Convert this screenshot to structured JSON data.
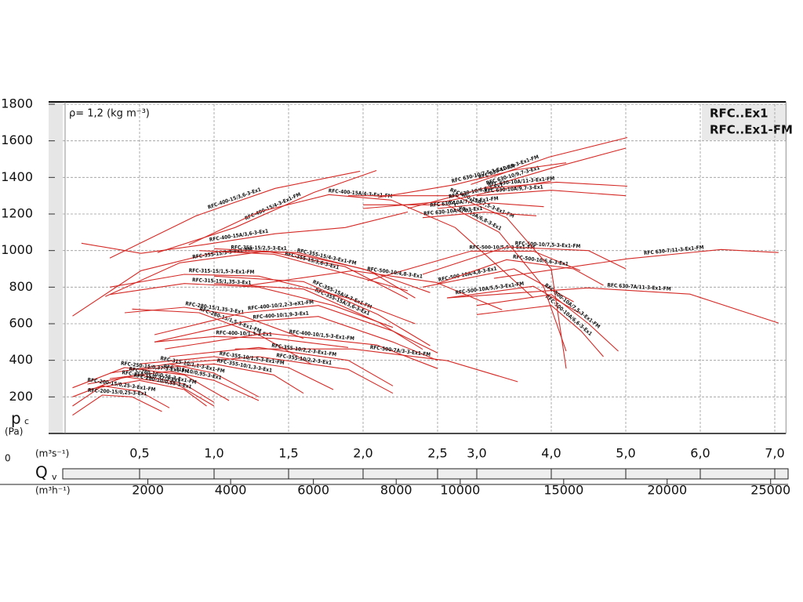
{
  "chart_data": {
    "type": "line",
    "info_label": "ρ= 1,2 (kg m⁻³)",
    "title_lines": [
      "RFC..Ex1",
      "RFC..Ex1-FM"
    ],
    "ylabel": "p",
    "ylabel_sub": "c",
    "yunit": "(Pa)",
    "xlabel": "Q",
    "xlabel_sub": "v",
    "xunit": "(m³s⁻¹)",
    "x2unit": "(m³h⁻¹)",
    "origin_label": 0,
    "color": "#d42a26",
    "grid": true,
    "xlim": [
      0,
      7.15
    ],
    "xticks": [
      {
        "value": 0.5,
        "label": "0,5"
      },
      {
        "value": 1.0,
        "label": "1,0"
      },
      {
        "value": 1.5,
        "label": "1,5"
      },
      {
        "value": 2.0,
        "label": "2,0"
      },
      {
        "value": 2.5,
        "label": "2,5"
      },
      {
        "value": 3.0,
        "label": "3,0"
      },
      {
        "value": 4.0,
        "label": "4,0"
      },
      {
        "value": 5.0,
        "label": "5,0"
      },
      {
        "value": 6.0,
        "label": "6,0"
      },
      {
        "value": 7.0,
        "label": "7,0"
      }
    ],
    "x2ticks": [
      2000,
      4000,
      6000,
      8000,
      10000,
      15000,
      20000,
      25000
    ],
    "ylim": [
      0,
      1800
    ],
    "yticks": [
      200,
      400,
      600,
      800,
      1000,
      1200,
      1400,
      1600,
      1800
    ],
    "series": [
      {
        "name": "RFC-400-15/3,6-3-Ex1",
        "x": [
          0.3,
          0.88,
          1.41,
          1.98
        ],
        "values": [
          959,
          1190,
          1340,
          1434
        ]
      },
      {
        "name": "RFC-400-15/4-3-Ex1-FM",
        "x": [
          0.62,
          1.14,
          1.67,
          2.09
        ],
        "values": [
          989,
          1126,
          1318,
          1438
        ]
      },
      {
        "name": "RFC-400-15A/4-3-Ex1-FM",
        "x": [
          0.83,
          1.3,
          1.77,
          2.19,
          2.71,
          3.76
        ],
        "values": [
          1032,
          1211,
          1306,
          1276,
          1126,
          741
        ]
      },
      {
        "name": "RFC-400-15A/3,6-3-Ex1",
        "x": [
          0.11,
          0.51,
          0.93,
          1.41,
          1.88,
          2.3
        ],
        "values": [
          1040,
          985,
          1032,
          1092,
          1126,
          1211
        ]
      },
      {
        "name": "RFC-355-15/2,5-3-Ex1",
        "x": [
          0.05,
          0.51,
          1.04,
          1.56,
          2.04,
          2.35
        ],
        "values": [
          642,
          890,
          997,
          989,
          890,
          741
        ]
      },
      {
        "name": "RFC-355-15/3-3-Ex1-FM",
        "x": [
          0.27,
          0.77,
          1.35,
          1.88,
          2.3
        ],
        "values": [
          749,
          933,
          997,
          912,
          736
        ]
      },
      {
        "name": "RFC-355-15/3,6-3-Ex1",
        "x": [
          0.9,
          1.4,
          1.9,
          2.3
        ],
        "values": [
          1000,
          980,
          870,
          780
        ]
      },
      {
        "name": "RFC-355-15/4-3-Ex1-FM",
        "x": [
          1.0,
          1.5,
          2.0,
          2.45
        ],
        "values": [
          1010,
          990,
          900,
          770
        ]
      },
      {
        "name": "RFC-355-15A/4-3-Ex1-FM",
        "x": [
          1.0,
          1.6,
          2.1,
          2.45
        ],
        "values": [
          860,
          830,
          650,
          480
        ]
      },
      {
        "name": "RFC-355-15A/3,6-3-Ex1",
        "x": [
          1.0,
          1.6,
          2.1,
          2.4
        ],
        "values": [
          820,
          790,
          610,
          460
        ]
      },
      {
        "name": "RFC-315-15/1,35-3-Ex1",
        "x": [
          0.3,
          0.8,
          1.3,
          1.8,
          2.2
        ],
        "values": [
          760,
          820,
          800,
          700,
          580
        ]
      },
      {
        "name": "RFC-315-15/1,5-3-Ex1-FM",
        "x": [
          0.3,
          0.8,
          1.3,
          1.9,
          2.35
        ],
        "values": [
          800,
          870,
          860,
          740,
          600
        ]
      },
      {
        "name": "RFC-280-15/1,35-3-Ex1",
        "x": [
          0.4,
          0.8,
          1.2,
          1.6
        ],
        "values": [
          660,
          690,
          640,
          520
        ]
      },
      {
        "name": "RFC-280-15/1,5-3-Ex1-FM",
        "x": [
          0.45,
          0.9,
          1.3,
          1.65
        ],
        "values": [
          680,
          660,
          540,
          380
        ]
      },
      {
        "name": "RFC-400-10/2,2-3-eX1-FM",
        "x": [
          0.6,
          1.2,
          1.7,
          2.2,
          2.5
        ],
        "values": [
          540,
          660,
          700,
          560,
          440
        ]
      },
      {
        "name": "RFC-400-10/1,9-3-Ex1",
        "x": [
          0.6,
          1.2,
          1.7,
          2.2,
          2.5
        ],
        "values": [
          500,
          610,
          640,
          500,
          400
        ]
      },
      {
        "name": "RFC-400-10/1,3-3-Ex1",
        "x": [
          0.6,
          1.0,
          1.4,
          1.9
        ],
        "values": [
          500,
          530,
          520,
          470
        ]
      },
      {
        "name": "RFC-400-10/1,5-3-Ex1-FM",
        "x": [
          0.67,
          1.35,
          2.09,
          2.5
        ],
        "values": [
          462,
          548,
          484,
          355
        ]
      },
      {
        "name": "RFC-500-10/5,5-3-Ex1-FM",
        "x": [
          2.03,
          2.92,
          3.76,
          4.39
        ],
        "values": [
          835,
          997,
          997,
          890
        ]
      },
      {
        "name": "RFC-500-10/4,8-3-Ex1",
        "x": [
          1.19,
          1.93,
          2.49,
          3.34
        ],
        "values": [
          805,
          890,
          826,
          676
        ]
      },
      {
        "name": "RFC-500-10A/4,8-3-Ex1",
        "x": [
          2.4,
          3.5,
          4.3
        ],
        "values": [
          800,
          900,
          720
        ]
      },
      {
        "name": "RFC-500-10/7,5-3-Ex1-FM",
        "x": [
          2.4,
          3.4,
          4.5,
          5.0
        ],
        "values": [
          870,
          1020,
          1000,
          900
        ]
      },
      {
        "name": "RFC-500-10/6,6-3-Ex1",
        "x": [
          2.5,
          3.4,
          4.3,
          4.7
        ],
        "values": [
          820,
          950,
          900,
          810
        ]
      },
      {
        "name": "RFC-500-10A/5,5-3-Ex1-FM",
        "x": [
          2.6,
          3.76,
          4.39
        ],
        "values": [
          741,
          805,
          655
        ]
      },
      {
        "name": "RFC-500-10A/7,5-3-Ex1-FM",
        "x": [
          3.0,
          4.0,
          4.5,
          4.9
        ],
        "values": [
          700,
          760,
          600,
          450
        ]
      },
      {
        "name": "RFC-500-10A/6,6-3-Ex1",
        "x": [
          3.0,
          4.0,
          4.4,
          4.7
        ],
        "values": [
          650,
          700,
          560,
          420
        ]
      },
      {
        "name": "RFC-400-15A/6,8-3-Ex1",
        "x": [
          2.0,
          2.6,
          3.3,
          3.9,
          4.2
        ],
        "values": [
          1250,
          1250,
          1100,
          800,
          450
        ]
      },
      {
        "name": "RFC-400-15A/7,5-3-Ex1-FM",
        "x": [
          1.9,
          2.7,
          3.4,
          4.0,
          4.2
        ],
        "values": [
          1300,
          1300,
          1180,
          900,
          355
        ]
      },
      {
        "name": "RFC 630-10/11-3-Ex1-FM",
        "x": [
          2.92,
          3.97,
          5.02
        ],
        "values": [
          1361,
          1511,
          1618
        ]
      },
      {
        "name": "RFC 630-10/9,7-3-Ex1",
        "x": [
          2.3,
          3.0,
          4.0,
          5.0
        ],
        "values": [
          1230,
          1330,
          1450,
          1560
        ]
      },
      {
        "name": "RFC 630-10/7,5-3-Ex1-FM",
        "x": [
          2.1,
          2.7,
          3.5,
          4.2
        ],
        "values": [
          1290,
          1360,
          1440,
          1480
        ]
      },
      {
        "name": "RFC 630-10/6,6-3-Ex1",
        "x": [
          2.0,
          2.6,
          3.4,
          4.0
        ],
        "values": [
          1230,
          1270,
          1340,
          1380
        ]
      },
      {
        "name": "RFC 630-10A/11-3-Ex1-FM",
        "x": [
          3.13,
          4.07,
          5.02
        ],
        "values": [
          1340,
          1374,
          1352
        ]
      },
      {
        "name": "RFC 630-10A/9,7-3-Ex1",
        "x": [
          3.0,
          4.0,
          5.0
        ],
        "values": [
          1300,
          1330,
          1300
        ]
      },
      {
        "name": "RFC 630-10A/7,5-3-Ex1-FM",
        "x": [
          2.5,
          3.2,
          3.9
        ],
        "values": [
          1230,
          1260,
          1240
        ]
      },
      {
        "name": "RFC 630-10A/6,6-3-Ex1",
        "x": [
          2.4,
          3.1,
          3.8
        ],
        "values": [
          1180,
          1210,
          1190
        ]
      },
      {
        "name": "RFC 630-7/11-3-Ex1-FM",
        "x": [
          3.23,
          5.02,
          6.28,
          7.05
        ],
        "values": [
          848,
          955,
          1006,
          989
        ]
      },
      {
        "name": "RFC 630-7A/11-3-Ex1-FM",
        "x": [
          2.6,
          4.49,
          5.86,
          7.05
        ],
        "values": [
          741,
          796,
          762,
          604
        ]
      },
      {
        "name": "RFC-500-7A/3-3-Ex1-FM",
        "x": [
          1.14,
          1.93,
          2.6,
          3.55
        ],
        "values": [
          462,
          462,
          398,
          283
        ]
      },
      {
        "name": "RFC-355-10/2,2-3-Ex1-FM",
        "x": [
          0.7,
          1.3,
          1.9,
          2.2
        ],
        "values": [
          420,
          470,
          400,
          260
        ]
      },
      {
        "name": "RFC-355-10/2,2-3-Ex1",
        "x": [
          0.7,
          1.3,
          1.9,
          2.2
        ],
        "values": [
          380,
          420,
          350,
          220
        ]
      },
      {
        "name": "RFC-355-10/1,5-3-Ex1-FM",
        "x": [
          0.5,
          1.0,
          1.5,
          1.8
        ],
        "values": [
          380,
          420,
          360,
          240
        ]
      },
      {
        "name": "RFC-355-10/1,3-3-Ex1",
        "x": [
          0.5,
          1.0,
          1.4,
          1.6
        ],
        "values": [
          350,
          380,
          320,
          220
        ]
      },
      {
        "name": "RFC-315-10/1,1-3-Ex1-FM",
        "x": [
          0.3,
          0.7,
          1.0,
          1.3
        ],
        "values": [
          330,
          380,
          330,
          200
        ]
      },
      {
        "name": "RFC-315-10/0,95-3-Ex1",
        "x": [
          0.3,
          0.7,
          1.0,
          1.3
        ],
        "values": [
          300,
          340,
          290,
          180
        ]
      },
      {
        "name": "RFC-250-15/0,37-3-Ex1-FM",
        "x": [
          0.05,
          0.4,
          0.8,
          1.1
        ],
        "values": [
          250,
          360,
          320,
          180
        ]
      },
      {
        "name": "RFC-250-15/0,37-3-Ex1",
        "x": [
          0.05,
          0.4,
          0.75,
          1.0
        ],
        "values": [
          200,
          310,
          270,
          150
        ]
      },
      {
        "name": "RFC-280-10/0,55-3-Ex1-FM",
        "x": [
          0.15,
          0.5,
          0.8,
          1.0
        ],
        "values": [
          270,
          320,
          270,
          170
        ]
      },
      {
        "name": "RFC-280-10/0,55-3-Ex1",
        "x": [
          0.15,
          0.5,
          0.8,
          0.95
        ],
        "values": [
          240,
          290,
          240,
          150
        ]
      },
      {
        "name": "RFC-200-15/0,25-3-Ex1-FM",
        "x": [
          0.05,
          0.25,
          0.5,
          0.7
        ],
        "values": [
          150,
          260,
          230,
          140
        ]
      },
      {
        "name": "RFC-200-15/0,25-3-Ex1",
        "x": [
          0.05,
          0.25,
          0.45,
          0.65
        ],
        "values": [
          100,
          210,
          200,
          120
        ]
      }
    ]
  }
}
